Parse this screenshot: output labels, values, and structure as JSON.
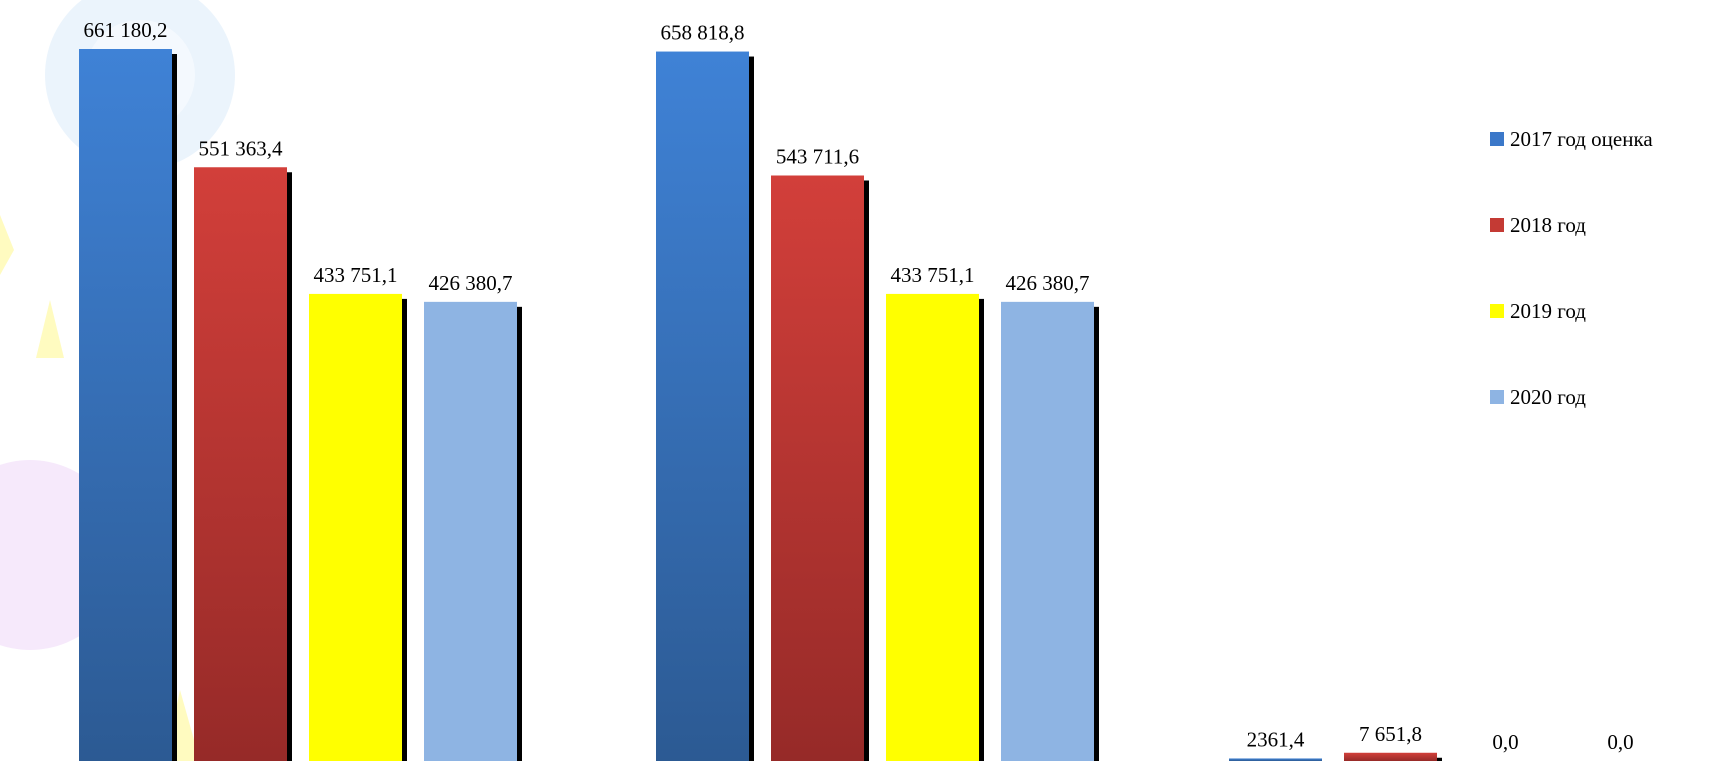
{
  "chart_data": {
    "type": "bar",
    "groups": 3,
    "series": [
      {
        "name": "2017 год оценка",
        "color": "#3B78C9",
        "values": [
          661180.2,
          658818.8,
          2361.4
        ],
        "labels": [
          "661 180,2",
          "658 818,8",
          "2361,4"
        ]
      },
      {
        "name": "2018 год",
        "color": "#C43A34",
        "values": [
          551363.4,
          543711.6,
          7651.8
        ],
        "labels": [
          "551 363,4",
          "543 711,6",
          "7 651,8"
        ]
      },
      {
        "name": "2019 год",
        "color": "#FFFF00",
        "values": [
          433751.1,
          433751.1,
          0.0
        ],
        "labels": [
          "433 751,1",
          "433 751,1",
          "0,0"
        ]
      },
      {
        "name": "2020 год",
        "color": "#8EB4E3",
        "values": [
          426380.7,
          426380.7,
          0.0
        ],
        "labels": [
          "426 380,7",
          "426 380,7",
          "0,0"
        ]
      }
    ],
    "legend_position": "right",
    "grid": false
  }
}
